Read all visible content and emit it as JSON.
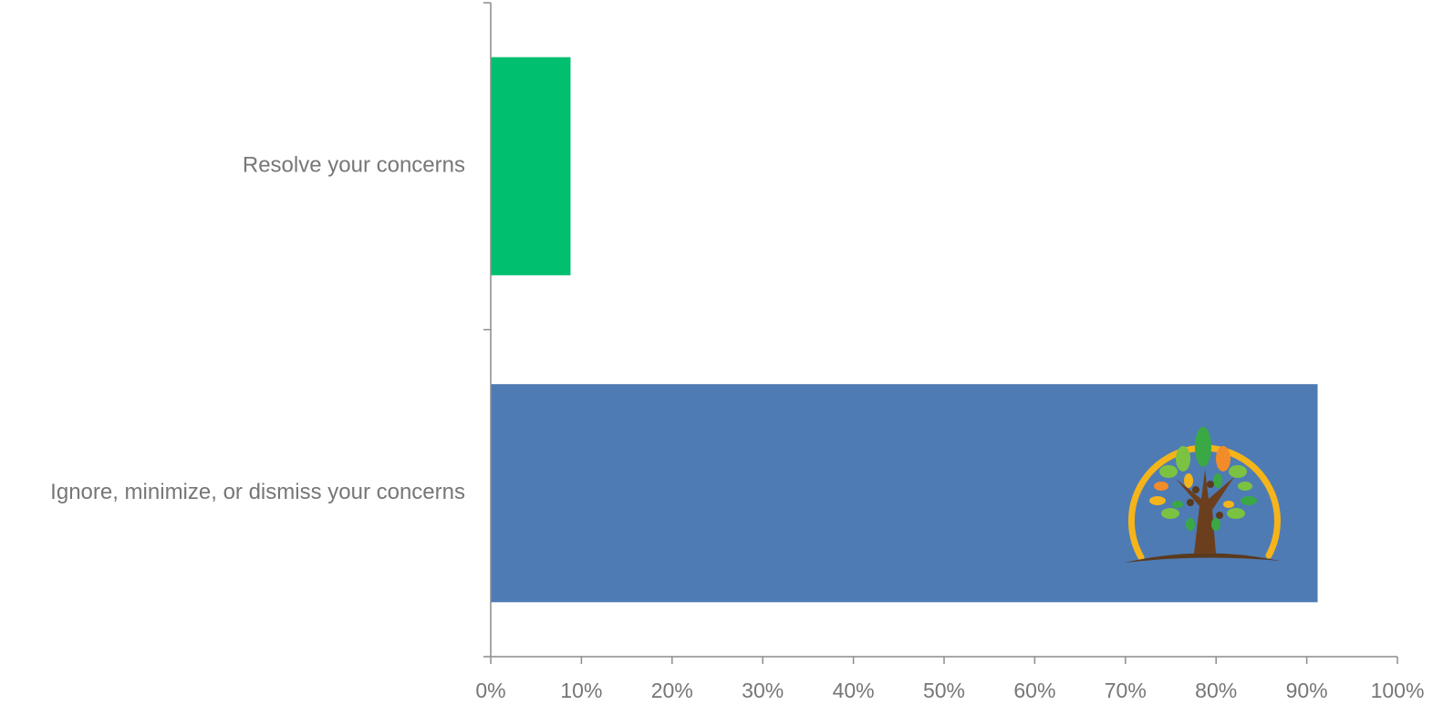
{
  "chart_data": {
    "type": "bar",
    "orientation": "horizontal",
    "categories": [
      "Resolve your concerns",
      "Ignore, minimize, or dismiss your concerns"
    ],
    "values": [
      0.088,
      0.912
    ],
    "bar_colors": [
      "#00bf6f",
      "#4f7bb4"
    ],
    "xlim": [
      0,
      1
    ],
    "x_ticks": [
      "0%",
      "10%",
      "20%",
      "30%",
      "40%",
      "50%",
      "60%",
      "70%",
      "80%",
      "90%",
      "100%"
    ],
    "grid": false,
    "legend": "none",
    "logo_icon": "tree-logo-icon"
  }
}
